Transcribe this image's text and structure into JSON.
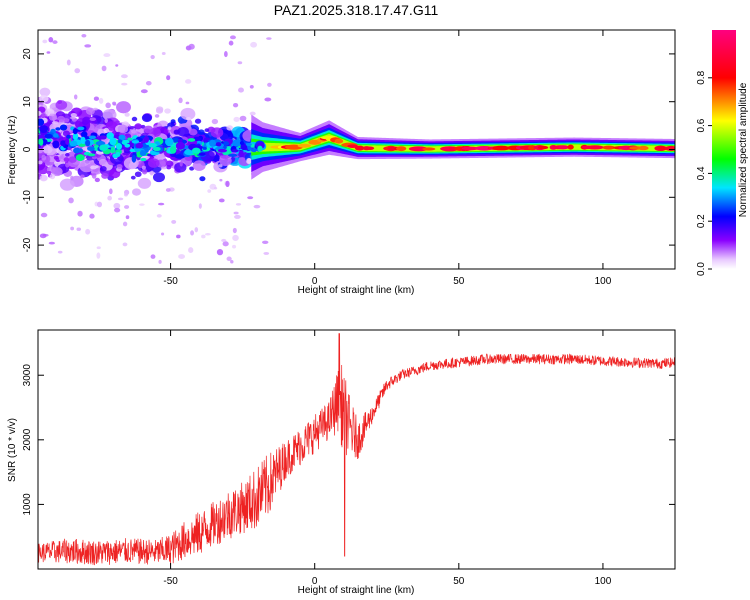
{
  "chart_data": [
    {
      "type": "heatmap",
      "title": "PAZ1.2025.318.17.47.G11",
      "xlabel": "Height of straight line (km)",
      "ylabel": "Frequency (Hz)",
      "xlim": [
        -96,
        125
      ],
      "ylim": [
        -25,
        25
      ],
      "xticks": [
        -50,
        0,
        50,
        100
      ],
      "yticks": [
        -20,
        -10,
        0,
        10,
        20
      ],
      "colorbar": {
        "label": "Normalized spectral amplitude",
        "range": [
          0,
          1
        ],
        "ticks": [
          0.0,
          0.2,
          0.4,
          0.6,
          0.8
        ],
        "tick_labels": [
          "0.0",
          "0.2",
          "0.4",
          "0.6",
          "0.8"
        ],
        "colormap": [
          "#ffffff",
          "#8a00ff",
          "#0000ff",
          "#00e5ff",
          "#00ff00",
          "#ffff00",
          "#ff0000",
          "#ff007f"
        ]
      },
      "ridge": [
        {
          "x": -96,
          "f": 2.5,
          "spread": 6,
          "amp": 0.15
        },
        {
          "x": -60,
          "f": 0.5,
          "spread": 5,
          "amp": 0.2
        },
        {
          "x": -30,
          "f": 0.5,
          "spread": 3,
          "amp": 0.3
        },
        {
          "x": -18,
          "f": 0.5,
          "spread": 1.5,
          "amp": 0.45
        },
        {
          "x": -5,
          "f": 0.5,
          "spread": 0.8,
          "amp": 0.65
        },
        {
          "x": 5,
          "f": 2.5,
          "spread": 1,
          "amp": 0.6
        },
        {
          "x": 15,
          "f": 0.3,
          "spread": 0.6,
          "amp": 0.7
        },
        {
          "x": 40,
          "f": 0.1,
          "spread": 0.5,
          "amp": 0.75
        },
        {
          "x": 90,
          "f": 0.5,
          "spread": 0.5,
          "amp": 0.7
        },
        {
          "x": 125,
          "f": 0.2,
          "spread": 0.5,
          "amp": 0.7
        }
      ]
    },
    {
      "type": "line",
      "title": "",
      "xlabel": "Height of straight line (km)",
      "ylabel": "SNR (10 * v/v)",
      "xlim": [
        -96,
        125
      ],
      "ylim": [
        0,
        3700
      ],
      "xticks": [
        -50,
        0,
        50,
        100
      ],
      "yticks": [
        1000,
        2000,
        3000
      ],
      "color": "#ee2222",
      "series": [
        {
          "name": "SNR",
          "x": [
            -96,
            -85,
            -75,
            -65,
            -55,
            -50,
            -45,
            -40,
            -35,
            -30,
            -25,
            -20,
            -16,
            -10,
            -5,
            0,
            5,
            8,
            10,
            12,
            15,
            20,
            25,
            30,
            40,
            50,
            60,
            70,
            80,
            90,
            100,
            110,
            120,
            125
          ],
          "y": [
            250,
            280,
            250,
            280,
            260,
            300,
            450,
            550,
            700,
            850,
            950,
            1100,
            1300,
            1700,
            1900,
            2100,
            2300,
            2600,
            2500,
            2200,
            2000,
            2400,
            2850,
            3000,
            3150,
            3200,
            3250,
            3250,
            3250,
            3250,
            3220,
            3200,
            3180,
            3200
          ],
          "noise": [
            150,
            200,
            200,
            200,
            200,
            250,
            300,
            350,
            350,
            400,
            400,
            500,
            500,
            300,
            300,
            300,
            300,
            500,
            700,
            500,
            300,
            150,
            100,
            80,
            80,
            80,
            80,
            80,
            80,
            80,
            80,
            80,
            80,
            80
          ]
        }
      ]
    }
  ]
}
